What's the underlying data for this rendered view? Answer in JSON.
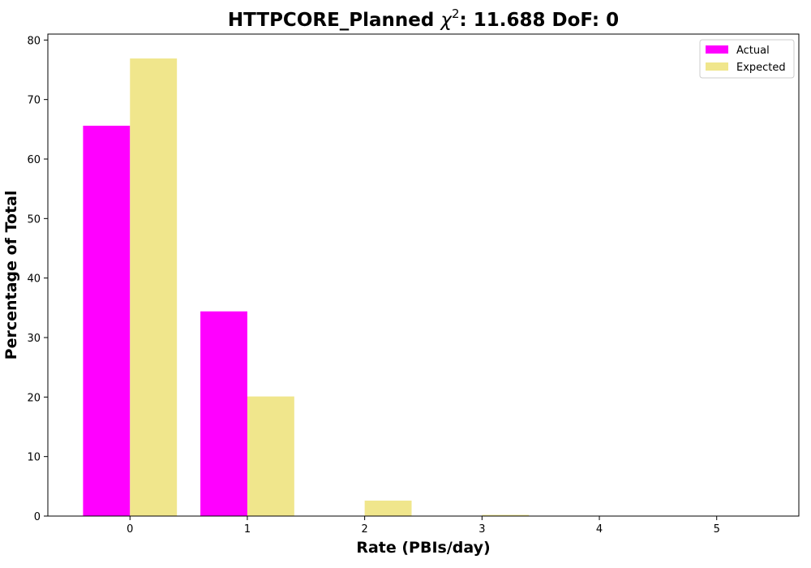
{
  "chart_data": {
    "type": "bar",
    "title_prefix": "HTTPCORE_Planned ",
    "title_symbol": "χ",
    "title_superscript": "2",
    "title_suffix": ": 11.688 DoF: 0",
    "xlabel": "Rate (PBIs/day)",
    "ylabel": "Percentage of Total",
    "categories": [
      "0",
      "1",
      "2",
      "3",
      "4",
      "5"
    ],
    "x": [
      0,
      1,
      2,
      3,
      4,
      5
    ],
    "series": [
      {
        "name": "Actual",
        "color": "#ff00ff",
        "values": [
          65.6,
          34.4,
          0,
          0,
          0,
          0
        ]
      },
      {
        "name": "Expected",
        "color": "#f0e68c",
        "values": [
          76.9,
          20.1,
          2.6,
          0.2,
          0,
          0
        ]
      }
    ],
    "xlim": [
      -0.7,
      5.7
    ],
    "ylim": [
      0,
      81
    ],
    "yticks": [
      0,
      10,
      20,
      30,
      40,
      50,
      60,
      70,
      80
    ],
    "grid": false,
    "legend_position": "top-right"
  }
}
